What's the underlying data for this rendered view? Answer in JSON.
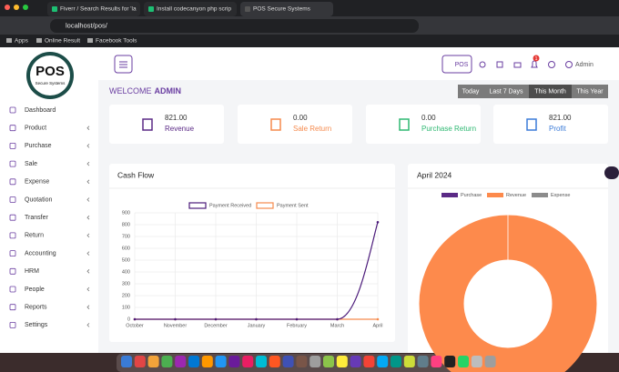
{
  "browser": {
    "tabs": [
      "Fiverr / Search Results for 'la",
      "Install codecanyon php scrip",
      "POS Secure Systems"
    ],
    "url": "localhost/pos/",
    "bookmarks": [
      "Apps",
      "Online Result",
      "Facebook Tools"
    ]
  },
  "logo": {
    "title": "POS",
    "subtitle": "Secure Systems"
  },
  "sidebar": [
    "Dashboard",
    "Product",
    "Purchase",
    "Sale",
    "Expense",
    "Quotation",
    "Transfer",
    "Return",
    "Accounting",
    "HRM",
    "People",
    "Reports",
    "Settings"
  ],
  "header": {
    "pos_button": "POS",
    "notification_count": "1",
    "user": "Admin"
  },
  "welcome": {
    "text": "WELCOME",
    "name": "ADMIN"
  },
  "filters": [
    "Today",
    "Last 7 Days",
    "This Month",
    "This Year"
  ],
  "cards": [
    {
      "value": "821.00",
      "label": "Revenue"
    },
    {
      "value": "0.00",
      "label": "Sale Return"
    },
    {
      "value": "0.00",
      "label": "Purchase Return"
    },
    {
      "value": "821.00",
      "label": "Profit"
    }
  ],
  "cash_flow": {
    "type": "line",
    "title": "Cash Flow",
    "categories": [
      "October",
      "November",
      "December",
      "January",
      "February",
      "March",
      "April"
    ],
    "series": [
      {
        "name": "Payment Received",
        "color": "#4b1a7a",
        "values": [
          0,
          0,
          0,
          0,
          0,
          0,
          821
        ]
      },
      {
        "name": "Payment Sent",
        "color": "#f58a4d",
        "values": [
          0,
          0,
          0,
          0,
          0,
          0,
          0
        ]
      }
    ],
    "ylim": [
      0,
      900
    ],
    "yticks": [
      0,
      100,
      200,
      300,
      400,
      500,
      600,
      700,
      800,
      900
    ],
    "grid": true
  },
  "month_chart": {
    "type": "doughnut",
    "title": "April 2024",
    "series": [
      {
        "name": "Purchase",
        "color": "#5b2a86",
        "value": 0
      },
      {
        "name": "Revenue",
        "color": "#fd8a4c",
        "value": 821
      },
      {
        "name": "Expense",
        "color": "#8c8c8c",
        "value": 0
      }
    ]
  }
}
